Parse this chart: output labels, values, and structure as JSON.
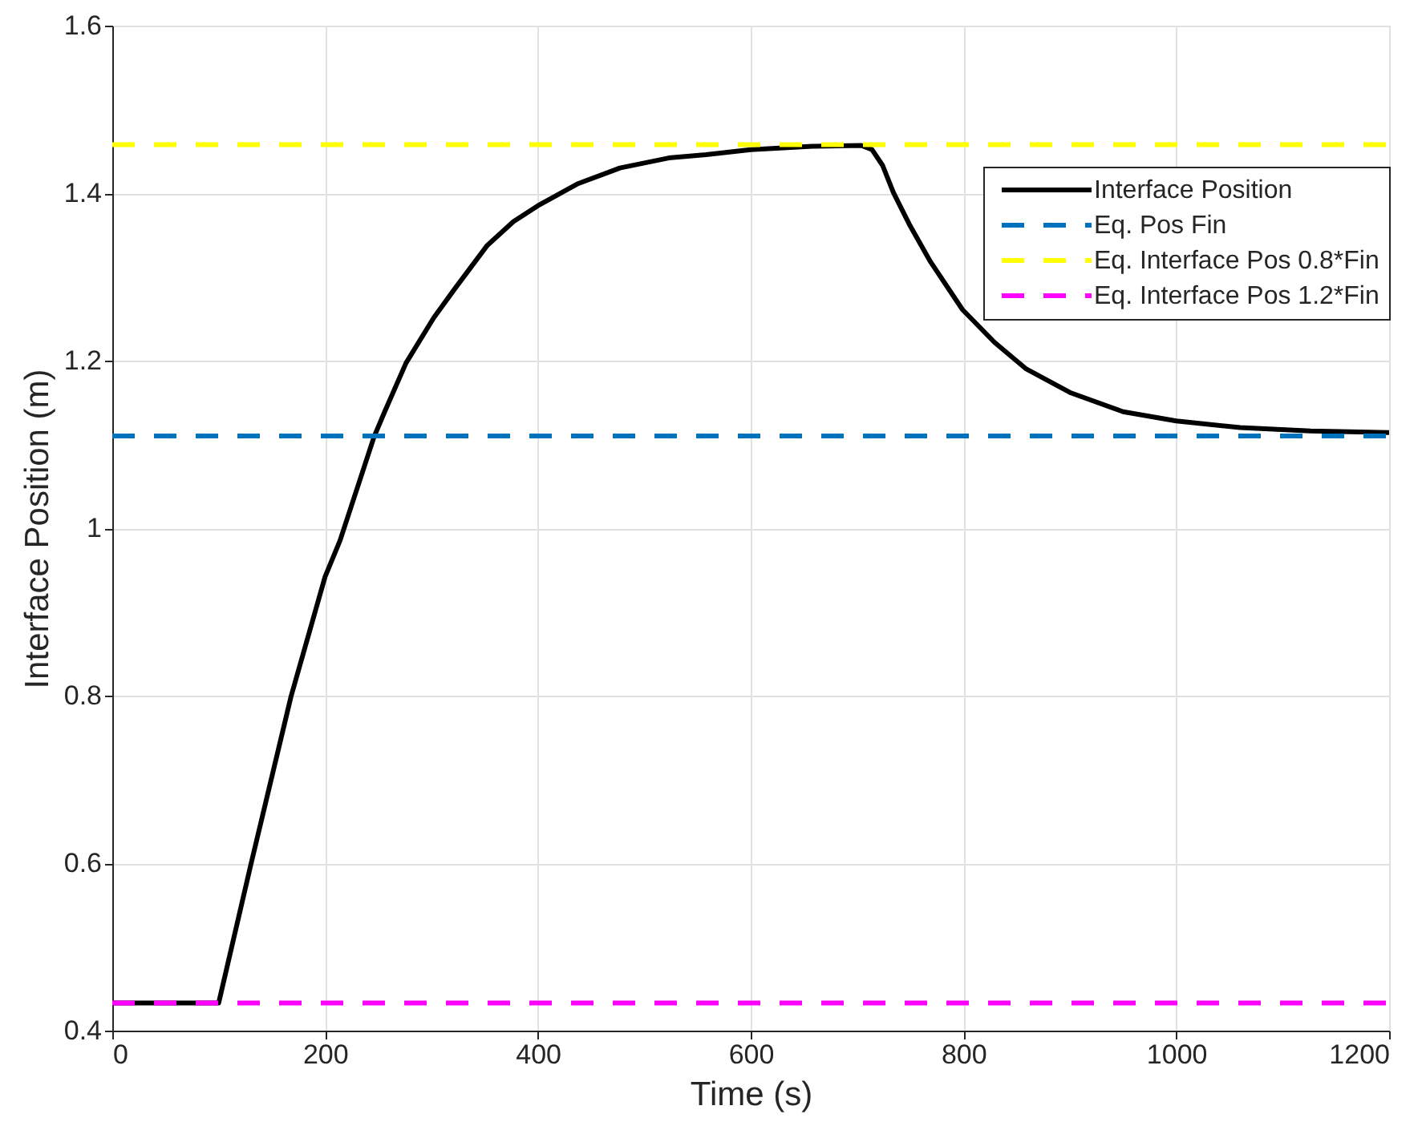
{
  "chart_data": {
    "type": "line",
    "xlabel": "Time (s)",
    "ylabel": "Interface Position (m)",
    "xlim": [
      0,
      1200
    ],
    "ylim": [
      0.4,
      1.6
    ],
    "xticks": [
      0,
      200,
      400,
      600,
      800,
      1000,
      1200
    ],
    "yticks": [
      0.4,
      0.6,
      0.8,
      1,
      1.2,
      1.4,
      1.6
    ],
    "grid": true,
    "legend": "top right",
    "series": [
      {
        "name": "Interface Position",
        "color": "#000000",
        "line_style": "solid",
        "x": [
          0,
          100,
          130,
          168,
          200,
          214,
          246,
          256,
          276,
          302,
          322,
          352,
          377,
          400,
          437,
          477,
          523,
          558,
          600,
          658,
          704,
          714,
          724,
          734,
          749,
          769,
          799,
          829,
          859,
          900,
          950,
          1000,
          1060,
          1126,
          1200
        ],
        "values": [
          0.433,
          0.433,
          0.597,
          0.799,
          0.942,
          0.985,
          1.109,
          1.139,
          1.197,
          1.251,
          1.286,
          1.337,
          1.366,
          1.385,
          1.411,
          1.43,
          1.442,
          1.446,
          1.452,
          1.456,
          1.457,
          1.452,
          1.433,
          1.401,
          1.363,
          1.318,
          1.261,
          1.222,
          1.19,
          1.162,
          1.139,
          1.128,
          1.12,
          1.116,
          1.114
        ]
      },
      {
        "name": "Eq. Pos Fin",
        "color": "#0072bd",
        "line_style": "dashed",
        "x": [
          0,
          1200
        ],
        "values": [
          1.11,
          1.11
        ]
      },
      {
        "name": "Eq. Interface Pos 0.8*Fin",
        "color": "#ffff00",
        "line_style": "dashed",
        "x": [
          0,
          1200
        ],
        "values": [
          1.458,
          1.458
        ]
      },
      {
        "name": "Eq. Interface Pos 1.2*Fin",
        "color": "#ff00ff",
        "line_style": "dashed",
        "x": [
          0,
          1200
        ],
        "values": [
          0.433,
          0.433
        ]
      }
    ]
  }
}
